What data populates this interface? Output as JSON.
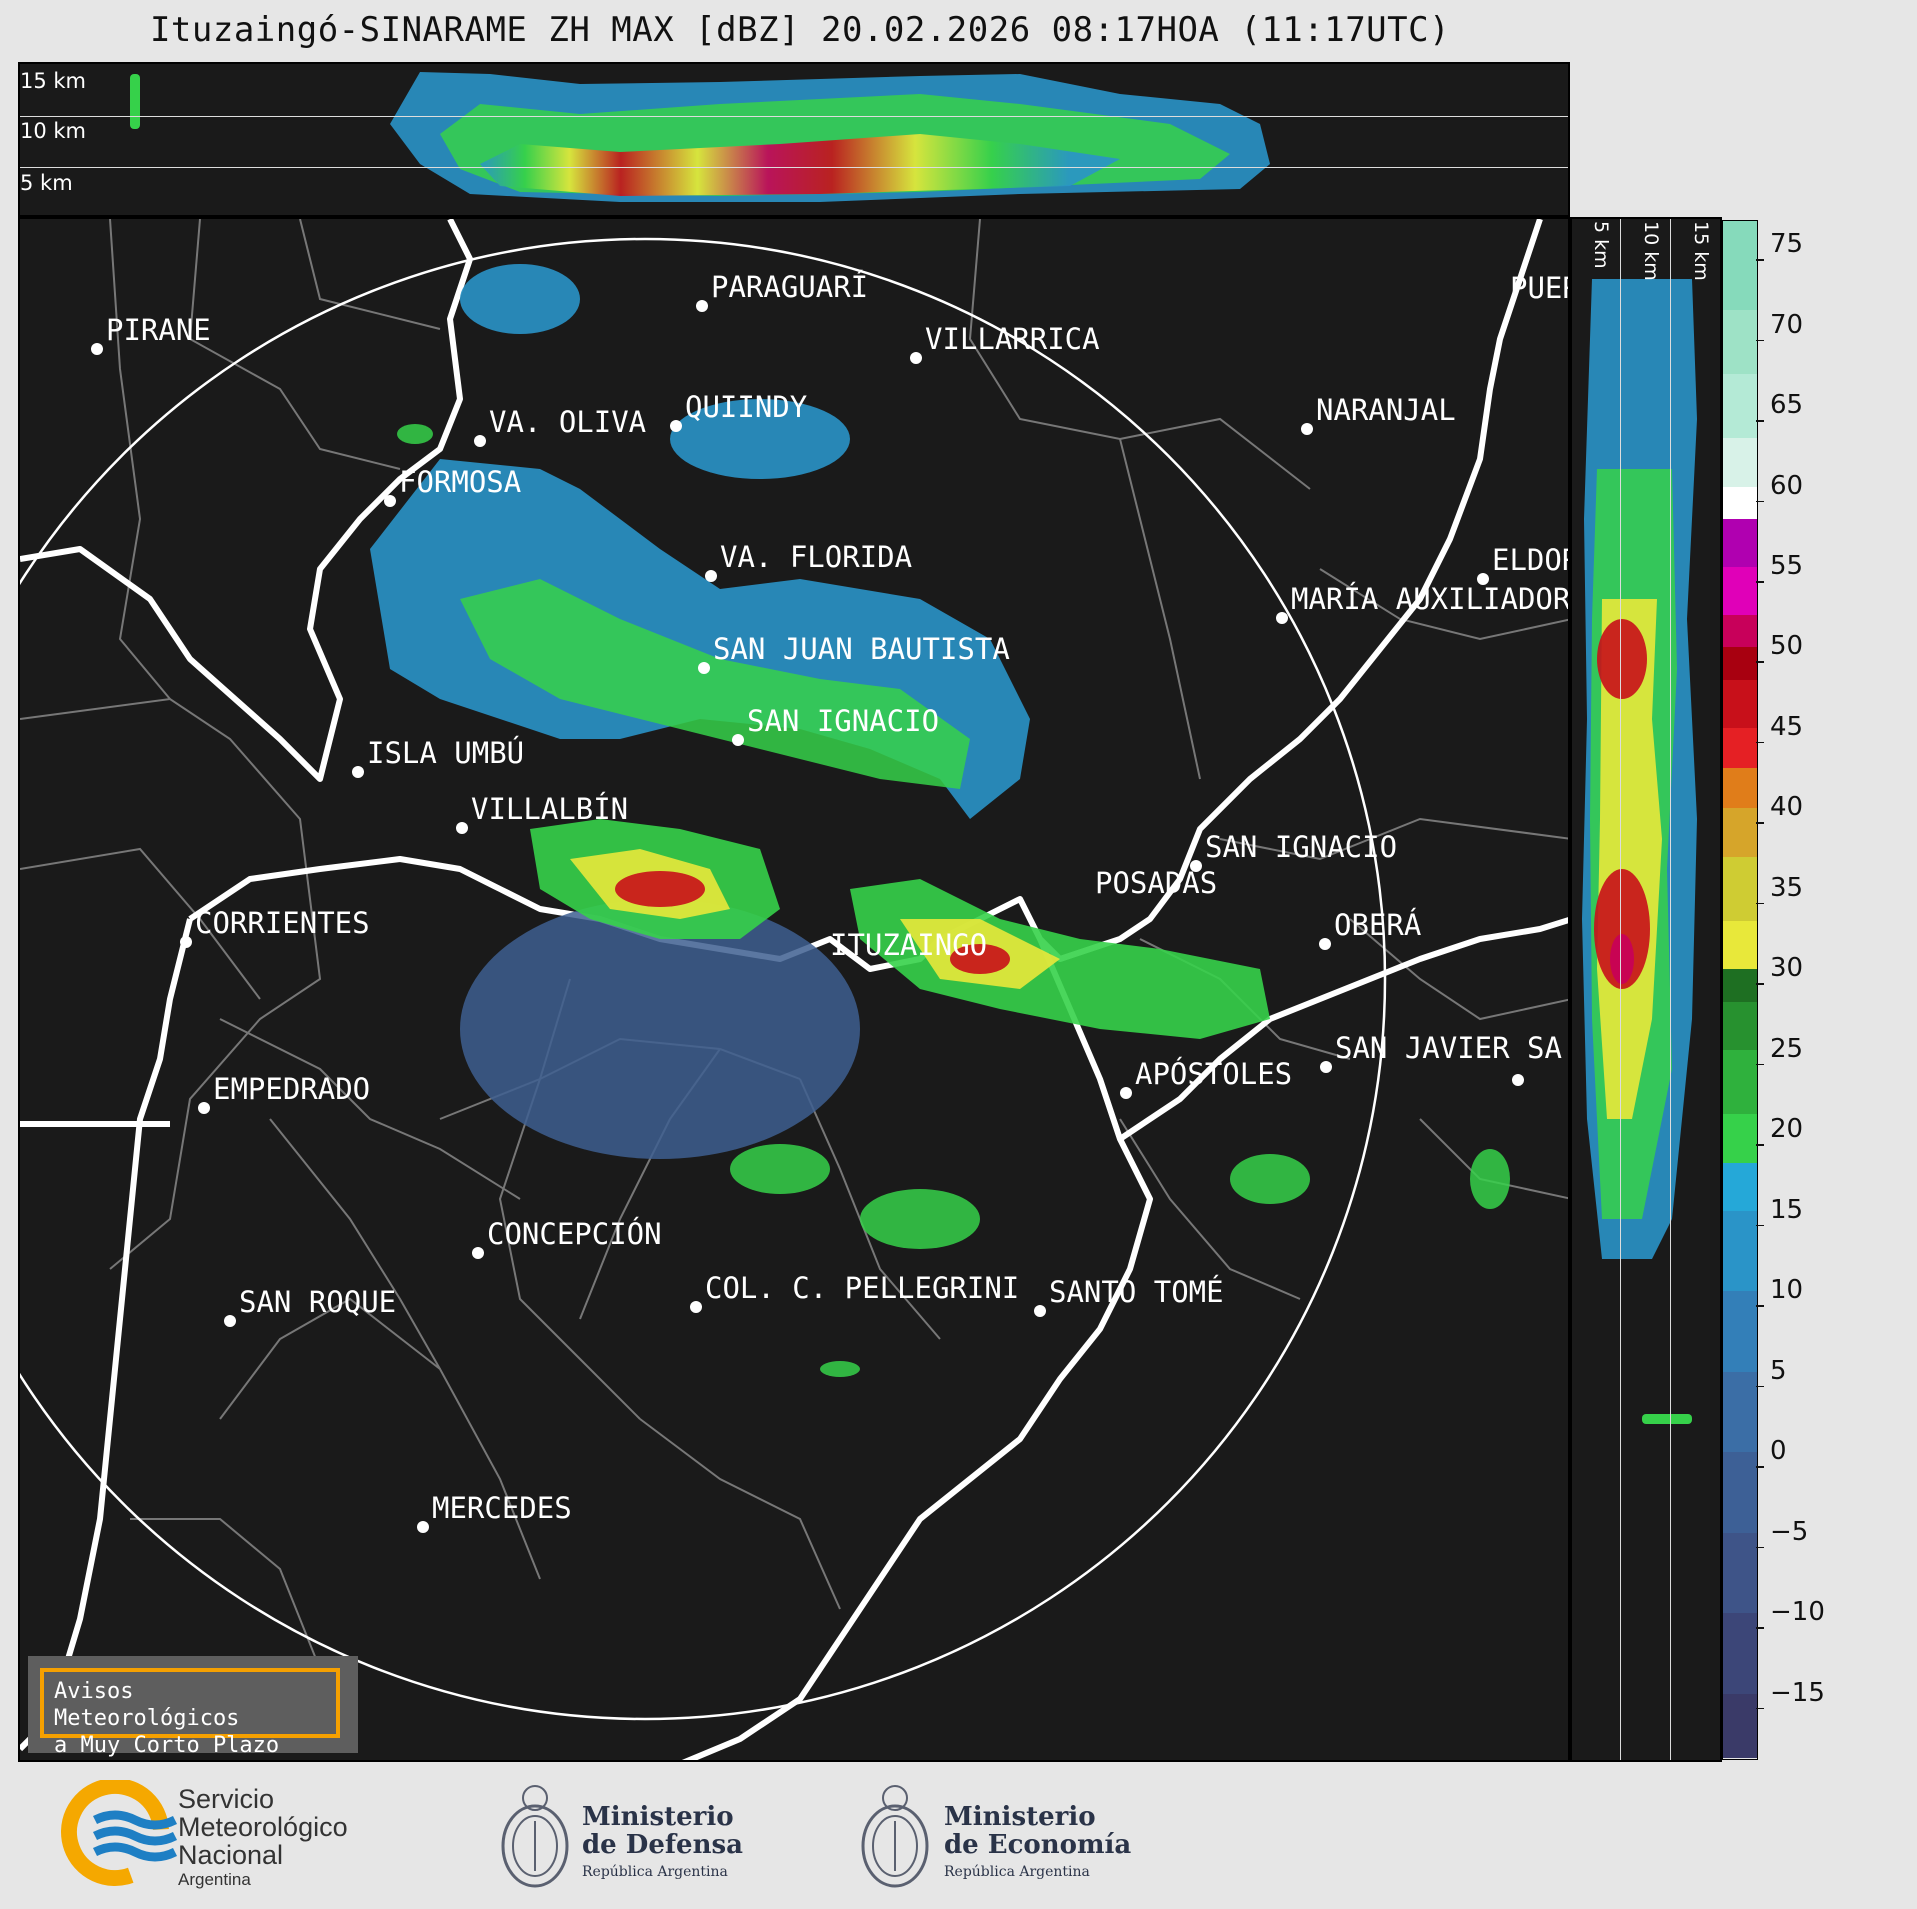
{
  "title": "Ituzaingó-SINARAME ZH MAX [dBZ] 20.02.2026 08:17HOA (11:17UTC)",
  "top_panel": {
    "height_labels": [
      "15 km",
      "10 km",
      "5 km"
    ]
  },
  "side_panel": {
    "height_labels": [
      "5 km",
      "10 km",
      "15 km"
    ]
  },
  "colorbar": {
    "ticks": [
      "75",
      "70",
      "65",
      "60",
      "55",
      "50",
      "45",
      "40",
      "35",
      "30",
      "25",
      "20",
      "15",
      "10",
      "5",
      "0",
      "−5",
      "−10",
      "−15"
    ],
    "range": [
      -19,
      76.5
    ],
    "stops": [
      {
        "from": -19,
        "color": "#3a3a68"
      },
      {
        "from": -15,
        "color": "#3c4678"
      },
      {
        "from": -10,
        "color": "#3e5488"
      },
      {
        "from": -5,
        "color": "#3d6096"
      },
      {
        "from": 0,
        "color": "#3b6ea6"
      },
      {
        "from": 5,
        "color": "#337fb8"
      },
      {
        "from": 10,
        "color": "#2a94c8"
      },
      {
        "from": 15,
        "color": "#25a8d8"
      },
      {
        "from": 18,
        "color": "#36d14a"
      },
      {
        "from": 21,
        "color": "#2fb13d"
      },
      {
        "from": 25,
        "color": "#27912f"
      },
      {
        "from": 28,
        "color": "#1e6f22"
      },
      {
        "from": 30,
        "color": "#e8e83a"
      },
      {
        "from": 33,
        "color": "#cfcc33"
      },
      {
        "from": 37,
        "color": "#d6a52a"
      },
      {
        "from": 40,
        "color": "#e07d1a"
      },
      {
        "from": 42.5,
        "color": "#e52024"
      },
      {
        "from": 45,
        "color": "#c8101a"
      },
      {
        "from": 48,
        "color": "#a80010"
      },
      {
        "from": 50,
        "color": "#c8005a"
      },
      {
        "from": 52,
        "color": "#e000b8"
      },
      {
        "from": 55,
        "color": "#b000b0"
      },
      {
        "from": 58,
        "color": "#ffffff"
      },
      {
        "from": 60,
        "color": "#d8f2e8"
      },
      {
        "from": 63,
        "color": "#b4ead6"
      },
      {
        "from": 67,
        "color": "#9ee2c6"
      },
      {
        "from": 71,
        "color": "#86dabb"
      }
    ]
  },
  "cities": [
    {
      "name": "PIRANE"
    },
    {
      "name": "PARAGUARÍ"
    },
    {
      "name": "VILLARRICA"
    },
    {
      "name": "QUIINDY"
    },
    {
      "name": "VA. OLIVA"
    },
    {
      "name": "NARANJAL"
    },
    {
      "name": "FORMOSA"
    },
    {
      "name": "PUER"
    },
    {
      "name": "VA. FLORIDA"
    },
    {
      "name": "ELDOR"
    },
    {
      "name": "MARÍA AUXILIADOR"
    },
    {
      "name": "SAN JUAN BAUTISTA"
    },
    {
      "name": "SAN IGNACIO"
    },
    {
      "name": "ISLA UMBÚ"
    },
    {
      "name": "VILLALBÍN"
    },
    {
      "name": "SAN IGNACIO"
    },
    {
      "name": "POSADAS"
    },
    {
      "name": "CORRIENTES"
    },
    {
      "name": "ITUZAINGO"
    },
    {
      "name": "OBERÁ"
    },
    {
      "name": "SAN JAVIER"
    },
    {
      "name": "SA"
    },
    {
      "name": "APÓSTOLES"
    },
    {
      "name": "EMPEDRADO"
    },
    {
      "name": "CONCEPCIÓN"
    },
    {
      "name": "COL. C. PELLEGRINI"
    },
    {
      "name": "SANTO TOMÉ"
    },
    {
      "name": "SAN ROQUE"
    },
    {
      "name": "MERCEDES"
    }
  ],
  "warning_box": {
    "line1": "Avisos Meteorológicos",
    "line2": "a Muy Corto Plazo"
  },
  "footer": {
    "smn": {
      "line1": "Servicio",
      "line2": "Meteorológico",
      "line3": "Nacional",
      "line4": "Argentina"
    },
    "defensa": {
      "line1": "Ministerio",
      "line2": "de Defensa",
      "line3": "República Argentina"
    },
    "economia": {
      "line1": "Ministerio",
      "line2": "de Economía",
      "line3": "República Argentina"
    }
  },
  "colors": {
    "background": "#1a1a1a",
    "accent": "#f5a000",
    "smn_blue": "#1e7fc4",
    "smn_orange": "#f5a800"
  }
}
